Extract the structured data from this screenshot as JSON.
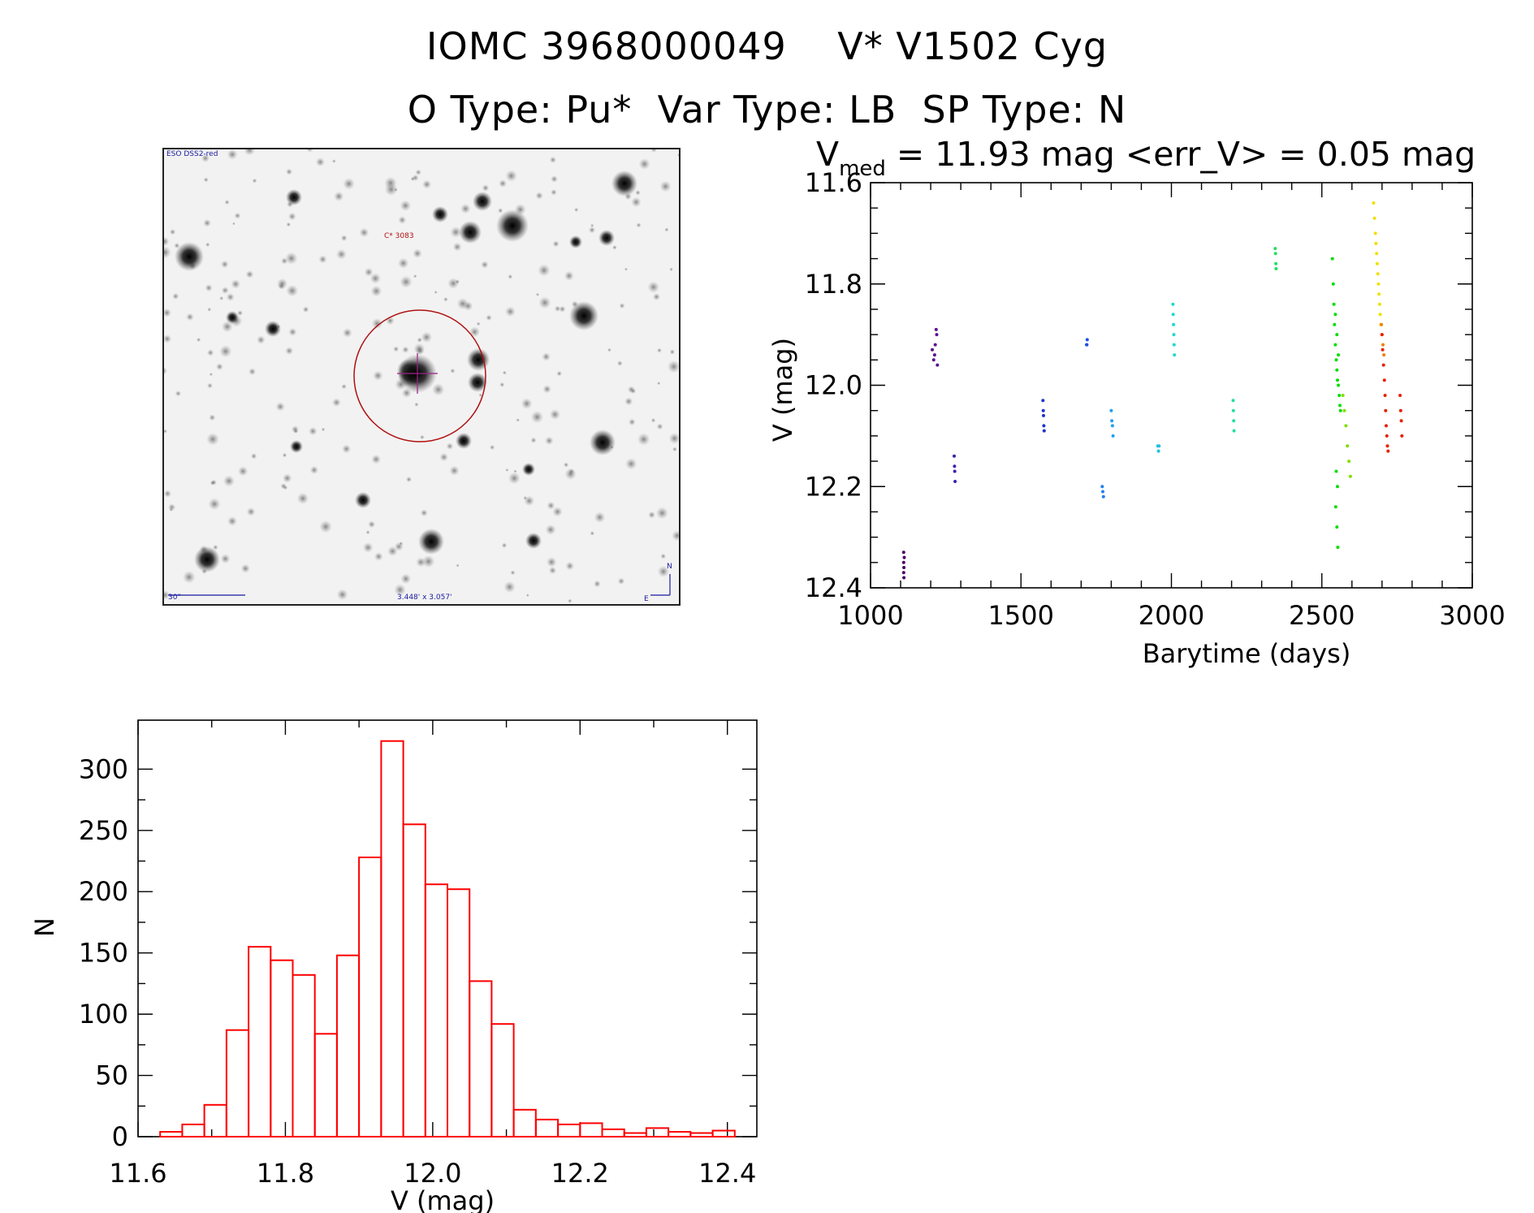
{
  "header": {
    "title_line1": "IOMC 3968000049    V* V1502 Cyg",
    "title_line2": "O Type: Pu*  Var Type: LB  SP Type: N"
  },
  "finder_chart": {
    "survey_label": "ESO DSS2-red",
    "object_label": "C* 3083",
    "scale_label": "30\"",
    "size_label": "3.448' x 3.057'",
    "compass_north": "N",
    "compass_east": "E",
    "circle_color": "#b01010",
    "label_color": "#1a1aa0"
  },
  "light_curve": {
    "title_prefix": "V",
    "title_sub": "med",
    "title_rest": " = 11.93 mag <err_V> = 0.05 mag",
    "xlabel": "Barytime (days)",
    "ylabel": "V (mag)",
    "xlim": [
      1000,
      3000
    ],
    "ylim": [
      11.6,
      12.4
    ],
    "xticks": [
      "1000",
      "1500",
      "2000",
      "2500",
      "3000"
    ],
    "yticks": [
      "11.6",
      "11.8",
      "12.0",
      "12.2",
      "12.4"
    ]
  },
  "histogram": {
    "xlabel": "V (mag)",
    "ylabel": "N",
    "xticks": [
      "11.6",
      "11.8",
      "12.0",
      "12.2",
      "12.4"
    ],
    "yticks": [
      "0",
      "50",
      "100",
      "150",
      "200",
      "250",
      "300"
    ],
    "color": "#ff0000"
  },
  "chart_data": [
    {
      "type": "scatter",
      "title": "V_med = 11.93 mag <err_V> = 0.05 mag",
      "xlabel": "Barytime (days)",
      "ylabel": "V (mag)",
      "xlim": [
        1000,
        3000
      ],
      "ylim": [
        11.6,
        12.4
      ],
      "y_inverted": true,
      "series": [
        {
          "name": "g1",
          "color": "#4b0060",
          "x": [
            1110,
            1110,
            1110,
            1111,
            1111,
            1112
          ],
          "y": [
            12.33,
            12.35,
            12.37,
            12.38,
            12.36,
            12.34
          ]
        },
        {
          "name": "g2",
          "color": "#5b1090",
          "x": [
            1205,
            1210,
            1215,
            1218,
            1220,
            1222,
            1213
          ],
          "y": [
            11.93,
            11.95,
            11.92,
            11.89,
            11.9,
            11.96,
            11.94
          ]
        },
        {
          "name": "g3",
          "color": "#4020b0",
          "x": [
            1278,
            1279,
            1280,
            1281
          ],
          "y": [
            12.14,
            12.16,
            12.17,
            12.19
          ]
        },
        {
          "name": "g4",
          "color": "#2030d0",
          "x": [
            1573,
            1574,
            1575,
            1576,
            1577
          ],
          "y": [
            12.03,
            12.05,
            12.06,
            12.08,
            12.09
          ]
        },
        {
          "name": "g5",
          "color": "#2050e0",
          "x": [
            1718,
            1719,
            1720
          ],
          "y": [
            11.92,
            11.92,
            11.91
          ]
        },
        {
          "name": "g6",
          "color": "#2080f0",
          "x": [
            1770,
            1772,
            1774
          ],
          "y": [
            12.2,
            12.21,
            12.22
          ]
        },
        {
          "name": "g7",
          "color": "#20a0f0",
          "x": [
            1800,
            1802,
            1804,
            1806
          ],
          "y": [
            12.05,
            12.07,
            12.08,
            12.1
          ]
        },
        {
          "name": "g8",
          "color": "#20c0e0",
          "x": [
            1955,
            1957,
            1959
          ],
          "y": [
            12.12,
            12.13,
            12.12
          ]
        },
        {
          "name": "g9",
          "color": "#20d8d0",
          "x": [
            2005,
            2006,
            2007,
            2008,
            2009,
            2010
          ],
          "y": [
            11.84,
            11.86,
            11.88,
            11.9,
            11.92,
            11.94
          ]
        },
        {
          "name": "g10",
          "color": "#20e0a0",
          "x": [
            2205,
            2206,
            2207,
            2208
          ],
          "y": [
            12.03,
            12.05,
            12.07,
            12.09
          ]
        },
        {
          "name": "g11",
          "color": "#20e060",
          "x": [
            2345,
            2346,
            2347,
            2348
          ],
          "y": [
            11.73,
            11.74,
            11.76,
            11.77
          ]
        },
        {
          "name": "g12",
          "color": "#00e000",
          "x": [
            2535,
            2538,
            2540,
            2542,
            2545,
            2548,
            2550,
            2552,
            2555,
            2558,
            2560,
            2562,
            2545,
            2550,
            2555,
            2548,
            2552,
            2546,
            2550,
            2553
          ],
          "y": [
            11.75,
            11.8,
            11.84,
            11.88,
            11.92,
            11.95,
            11.97,
            11.99,
            12.0,
            12.02,
            12.04,
            12.05,
            11.86,
            11.9,
            11.94,
            12.17,
            12.2,
            12.24,
            12.28,
            12.32
          ]
        },
        {
          "name": "g13",
          "color": "#80e000",
          "x": [
            2570,
            2575,
            2580,
            2585,
            2590,
            2595
          ],
          "y": [
            12.02,
            12.05,
            12.08,
            12.12,
            12.15,
            12.18
          ]
        },
        {
          "name": "g14",
          "color": "#f0e000",
          "x": [
            2672,
            2675,
            2678,
            2680,
            2682,
            2684,
            2686,
            2688,
            2690,
            2692,
            2694,
            2696
          ],
          "y": [
            11.64,
            11.67,
            11.7,
            11.72,
            11.74,
            11.76,
            11.78,
            11.8,
            11.82,
            11.84,
            11.86,
            11.88
          ]
        },
        {
          "name": "g15",
          "color": "#f08000",
          "x": [
            2698,
            2700,
            2703,
            2706
          ],
          "y": [
            11.88,
            11.9,
            11.92,
            11.94
          ]
        },
        {
          "name": "g16",
          "color": "#e82000",
          "x": [
            2700,
            2702,
            2705,
            2708,
            2710,
            2712,
            2714,
            2716,
            2718,
            2720,
            2760,
            2762,
            2764,
            2766
          ],
          "y": [
            11.9,
            11.93,
            11.96,
            11.99,
            12.02,
            12.05,
            12.08,
            12.1,
            12.12,
            12.13,
            12.02,
            12.05,
            12.07,
            12.1
          ]
        }
      ]
    },
    {
      "type": "bar",
      "histogram": true,
      "xlabel": "V (mag)",
      "ylabel": "N",
      "xlim": [
        11.6,
        12.44
      ],
      "ylim": [
        0,
        340
      ],
      "bin_width": 0.03,
      "bin_edges_start": 11.63,
      "counts": [
        4,
        10,
        26,
        87,
        155,
        144,
        132,
        84,
        148,
        228,
        323,
        255,
        206,
        202,
        127,
        92,
        22,
        14,
        10,
        11,
        6,
        3,
        7,
        4,
        3,
        5
      ]
    }
  ]
}
